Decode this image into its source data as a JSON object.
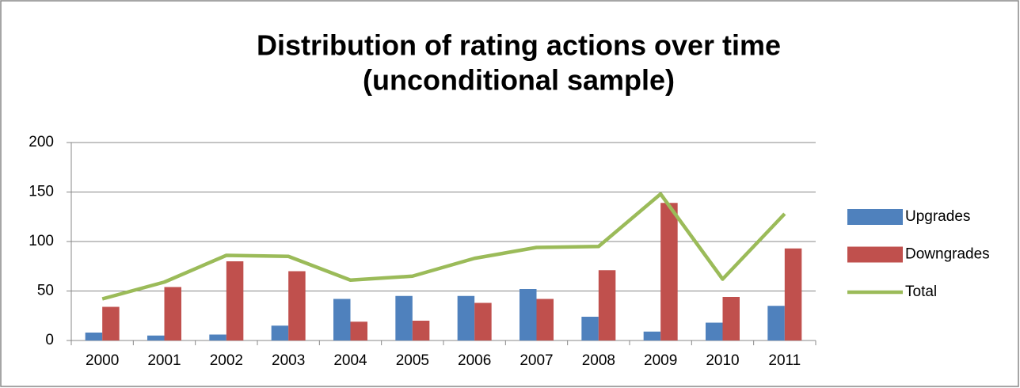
{
  "chart_data": {
    "type": "bar-line",
    "title": [
      "Distribution of  rating actions over time",
      "(unconditional sample)"
    ],
    "categories": [
      "2000",
      "2001",
      "2002",
      "2003",
      "2004",
      "2005",
      "2006",
      "2007",
      "2008",
      "2009",
      "2010",
      "2011"
    ],
    "series": [
      {
        "name": "Upgrades",
        "type": "bar",
        "color": "#4f81bd",
        "values": [
          8,
          5,
          6,
          15,
          42,
          45,
          45,
          52,
          24,
          9,
          18,
          35
        ]
      },
      {
        "name": "Downgrades",
        "type": "bar",
        "color": "#c0504d",
        "values": [
          34,
          54,
          80,
          70,
          19,
          20,
          38,
          42,
          71,
          139,
          44,
          93
        ]
      },
      {
        "name": "Total",
        "type": "line",
        "color": "#9bbb59",
        "values": [
          42,
          59,
          86,
          85,
          61,
          65,
          83,
          94,
          95,
          148,
          62,
          128
        ]
      }
    ],
    "ylim": [
      0,
      200
    ],
    "yticks": [
      0,
      50,
      100,
      150,
      200
    ],
    "grid": true,
    "legend": "right"
  }
}
